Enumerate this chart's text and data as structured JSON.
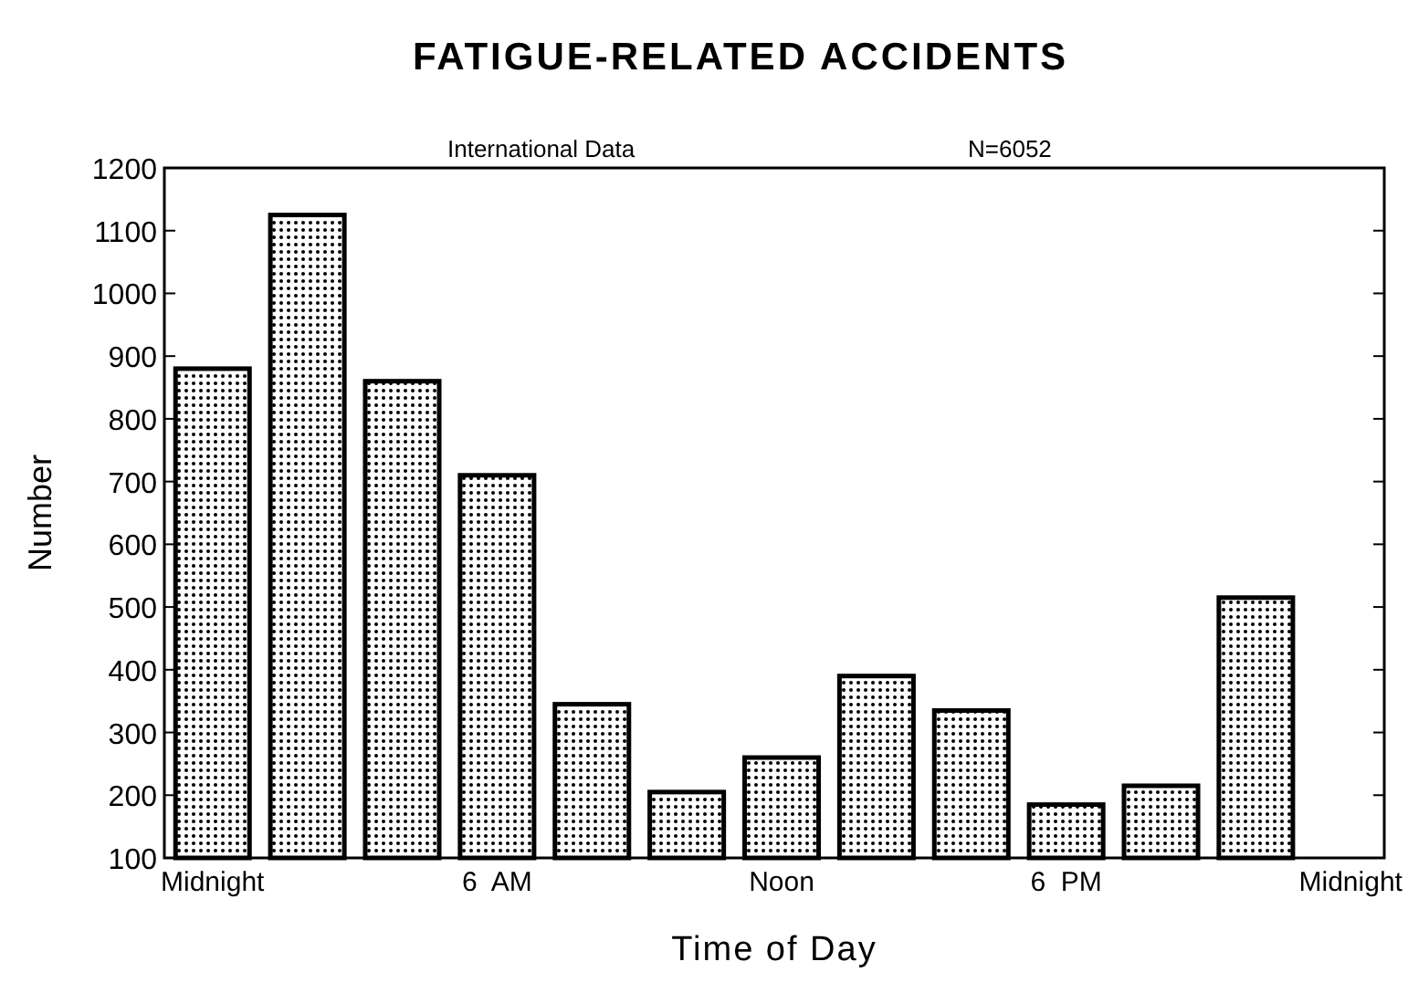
{
  "chart_data": {
    "type": "bar",
    "title": "FATIGUE-RELATED ACCIDENTS",
    "xlabel": "Time of Day",
    "ylabel": "Number",
    "annotations": [
      "International Data",
      "N=6052"
    ],
    "categories": [
      "Midnight",
      null,
      null,
      "6  AM",
      null,
      null,
      "Noon",
      null,
      null,
      "6  PM",
      null,
      null,
      "Midnight"
    ],
    "values": [
      880,
      1125,
      860,
      710,
      345,
      205,
      260,
      390,
      335,
      185,
      215,
      515,
      null
    ],
    "color": "#000000",
    "ylim": [
      100,
      1200
    ],
    "yticks": [
      100,
      200,
      300,
      400,
      500,
      600,
      700,
      800,
      900,
      1000,
      1100,
      1200
    ]
  }
}
